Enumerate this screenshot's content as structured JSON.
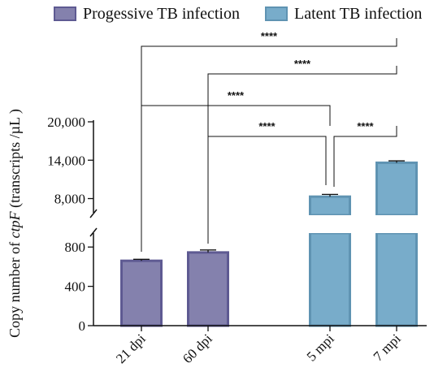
{
  "legend": [
    {
      "label": "Progessive TB infection",
      "color": "#8481ad",
      "edge": "#5e5a92"
    },
    {
      "label": "Latent TB infection",
      "color": "#78acca",
      "edge": "#5f93b2"
    }
  ],
  "chart_data": {
    "type": "bar",
    "categories": [
      "21 dpi",
      "60 dpi",
      "5 mpi",
      "7 mpi"
    ],
    "values": [
      660,
      745,
      8300,
      13600
    ],
    "errors": [
      15,
      25,
      350,
      300
    ],
    "groups": [
      "Progessive TB infection",
      "Progessive TB infection",
      "Latent TB infection",
      "Latent TB infection"
    ],
    "ylabel_parts": [
      "Copy number of ",
      "ctpF",
      " (transcripts /µL )"
    ],
    "axis_break": {
      "lower": {
        "range": [
          0,
          1000
        ],
        "ticks": [
          "0",
          "400",
          "800"
        ]
      },
      "upper": {
        "range": [
          5400,
          20000
        ],
        "ticks": [
          "8,000",
          "14,000",
          "20,000"
        ]
      }
    },
    "significance": [
      {
        "from": "21 dpi",
        "to": "7 mpi",
        "label": "****"
      },
      {
        "from": "60 dpi",
        "to": "7 mpi",
        "label": "****"
      },
      {
        "from": "21 dpi",
        "to": "5 mpi",
        "label": "****"
      },
      {
        "from": "60 dpi",
        "to": "5 mpi",
        "label": "****"
      },
      {
        "from": "5 mpi",
        "to": "7 mpi",
        "label": "****"
      }
    ],
    "grid": false
  }
}
